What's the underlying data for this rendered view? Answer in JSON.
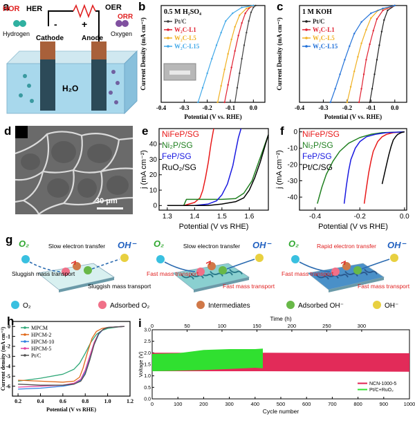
{
  "figure": {
    "panel_letters": [
      "a",
      "b",
      "c",
      "d",
      "e",
      "f",
      "g",
      "h",
      "i"
    ]
  },
  "panel_a": {
    "hor": "HOR",
    "her": "HER",
    "oer": "OER",
    "orr": "ORR",
    "hydrogen": "Hydrogen",
    "oxygen": "Oxygen",
    "cathode": "Cathode",
    "anode": "Anode",
    "minus": "-",
    "plus": "+",
    "electrolyte": "H₂O"
  },
  "panel_d": {
    "scale_bar": "30 μm"
  },
  "panel_g": {
    "o2": "O₂",
    "oh": "OH⁻",
    "col1": {
      "top": "Slow electron transfer",
      "left": "Sluggish mass transport",
      "right": "Sluggish mass transport"
    },
    "col2": {
      "top": "Slow electron transfer",
      "left": "Fast mass transport",
      "right": "Fast mass transport"
    },
    "col3": {
      "top": "Rapid electron transfer",
      "left": "Fast mass transport",
      "right": "Fast mass transport"
    },
    "legend": [
      "O₂",
      "Adsorbed O₂",
      "Intermediates",
      "Adsorbed OH⁻",
      "OH⁻"
    ],
    "colors": {
      "o2": "#39c0e0",
      "adsO2": "#f07088",
      "inter": "#d07848",
      "adsOH": "#68b848",
      "oh": "#e8d040"
    }
  },
  "chart_data": [
    {
      "id": "b",
      "type": "line",
      "annotation": "0.5 M H₂SO₄",
      "xlabel": "Potential (V vs. RHE)",
      "ylabel": "Current Density (mA cm⁻²)",
      "xlim": [
        -0.4,
        0.05
      ],
      "ylim": [
        -100,
        0
      ],
      "xticks": [
        "-0.4",
        "-0.3",
        "-0.2",
        "-0.1",
        "0.0"
      ],
      "series": [
        {
          "name": "Pt/C",
          "color": "#404040",
          "x": [
            -0.08,
            -0.07,
            -0.06,
            -0.05,
            -0.04,
            -0.03,
            -0.02,
            -0.01,
            0.0,
            0.01
          ],
          "y": [
            -100,
            -85,
            -70,
            -55,
            -41,
            -28,
            -16,
            -7,
            -2,
            0
          ]
        },
        {
          "name": "W₂C-L1",
          "color": "#e02030",
          "x": [
            -0.125,
            -0.11,
            -0.095,
            -0.08,
            -0.065,
            -0.05,
            -0.035,
            -0.02,
            0.0
          ],
          "y": [
            -100,
            -82,
            -64,
            -47,
            -31,
            -18,
            -8,
            -3,
            0
          ]
        },
        {
          "name": "W₂C-L5",
          "color": "#f0b020",
          "x": [
            -0.155,
            -0.14,
            -0.125,
            -0.11,
            -0.095,
            -0.08,
            -0.06,
            -0.03,
            0.0
          ],
          "y": [
            -100,
            -83,
            -66,
            -50,
            -35,
            -22,
            -10,
            -3,
            0
          ]
        },
        {
          "name": "W₂C-L15",
          "color": "#40a8e8",
          "x": [
            -0.24,
            -0.22,
            -0.2,
            -0.18,
            -0.16,
            -0.14,
            -0.12,
            -0.09,
            -0.05,
            0.0
          ],
          "y": [
            -100,
            -85,
            -70,
            -55,
            -41,
            -28,
            -16,
            -8,
            -2,
            0
          ]
        }
      ]
    },
    {
      "id": "c",
      "type": "line",
      "annotation": "1 M KOH",
      "xlabel": "Potential (V vs. RHE)",
      "ylabel": "Current Density (mA cm⁻²)",
      "xlim": [
        -0.4,
        0.05
      ],
      "ylim": [
        -100,
        0
      ],
      "xticks": [
        "-0.4",
        "-0.3",
        "-0.2",
        "-0.1",
        "0.0"
      ],
      "series": [
        {
          "name": "Pt/C",
          "color": "#202020",
          "x": [
            -0.105,
            -0.095,
            -0.085,
            -0.075,
            -0.065,
            -0.055,
            -0.045,
            -0.03,
            0.0
          ],
          "y": [
            -100,
            -86,
            -71,
            -56,
            -41,
            -27,
            -15,
            -5,
            0
          ]
        },
        {
          "name": "W₂C-L1",
          "color": "#e02030",
          "x": [
            -0.15,
            -0.14,
            -0.13,
            -0.12,
            -0.105,
            -0.09,
            -0.075,
            -0.05,
            0.0
          ],
          "y": [
            -100,
            -86,
            -71,
            -56,
            -40,
            -26,
            -14,
            -5,
            0
          ]
        },
        {
          "name": "W₂C-L5",
          "color": "#f0b020",
          "x": [
            -0.2,
            -0.185,
            -0.17,
            -0.155,
            -0.14,
            -0.12,
            -0.1,
            -0.07,
            0.0
          ],
          "y": [
            -100,
            -84,
            -68,
            -53,
            -39,
            -25,
            -13,
            -5,
            0
          ]
        },
        {
          "name": "W₂C-L15",
          "color": "#2070d8",
          "x": [
            -0.27,
            -0.25,
            -0.23,
            -0.21,
            -0.19,
            -0.17,
            -0.14,
            -0.1,
            -0.05,
            0.0
          ],
          "y": [
            -100,
            -86,
            -71,
            -56,
            -42,
            -29,
            -17,
            -8,
            -3,
            0
          ]
        }
      ]
    },
    {
      "id": "e",
      "type": "line",
      "xlabel": "Potential (V vs RHE)",
      "ylabel": "j (mA cm⁻²)",
      "xlim": [
        1.27,
        1.67
      ],
      "ylim": [
        -3,
        50
      ],
      "xticks": [
        "1.3",
        "1.4",
        "1.5",
        "1.6"
      ],
      "yticks": [
        "0",
        "10",
        "20",
        "30",
        "40"
      ],
      "series": [
        {
          "name": "NiFeP/SG",
          "color": "#e81818",
          "x": [
            1.3,
            1.36,
            1.38,
            1.4,
            1.42,
            1.43,
            1.44,
            1.45,
            1.46,
            1.47
          ],
          "y": [
            0,
            0,
            1,
            2,
            5,
            10,
            18,
            28,
            40,
            50
          ]
        },
        {
          "name": "Ni₂P/SG",
          "color": "#208020",
          "x": [
            1.3,
            1.36,
            1.37,
            1.4,
            1.5,
            1.55,
            1.58,
            1.61,
            1.63,
            1.65,
            1.67
          ],
          "y": [
            0,
            0,
            4,
            4,
            4,
            4.5,
            8,
            16,
            26,
            36,
            46
          ]
        },
        {
          "name": "FeP/SG",
          "color": "#1818e0",
          "x": [
            1.3,
            1.4,
            1.45,
            1.48,
            1.5,
            1.52,
            1.54,
            1.55,
            1.56,
            1.57
          ],
          "y": [
            0,
            0,
            1,
            3,
            7,
            14,
            26,
            35,
            44,
            50
          ]
        },
        {
          "name": "RuO₂/SG",
          "color": "#000000",
          "x": [
            1.3,
            1.45,
            1.5,
            1.55,
            1.58,
            1.6,
            1.62,
            1.64,
            1.66,
            1.67
          ],
          "y": [
            0,
            0,
            1,
            2.5,
            5,
            10,
            18,
            28,
            40,
            46
          ]
        }
      ]
    },
    {
      "id": "f",
      "type": "line",
      "xlabel": "Potential (V vs RHE)",
      "ylabel": "j (mA cm⁻²)",
      "xlim": [
        -0.47,
        0.01
      ],
      "ylim": [
        -48,
        2
      ],
      "xticks": [
        "-0.4",
        "-0.2",
        "0.0"
      ],
      "yticks": [
        "0",
        "-10",
        "-20",
        "-30",
        "-40"
      ],
      "series": [
        {
          "name": "NiFeP/SG",
          "color": "#e81818",
          "x": [
            -0.18,
            -0.17,
            -0.16,
            -0.15,
            -0.14,
            -0.12,
            -0.1,
            -0.08,
            -0.05,
            0.0
          ],
          "y": [
            -44,
            -34,
            -25,
            -18,
            -12,
            -6,
            -3,
            -1.5,
            -0.5,
            0
          ]
        },
        {
          "name": "Ni₂P/SG",
          "color": "#208020",
          "x": [
            -0.39,
            -0.37,
            -0.35,
            -0.32,
            -0.29,
            -0.25,
            -0.2,
            -0.15,
            -0.1,
            0.0
          ],
          "y": [
            -44,
            -34,
            -26,
            -18,
            -12,
            -7,
            -3.5,
            -1.5,
            -0.5,
            0
          ]
        },
        {
          "name": "FeP/SG",
          "color": "#1818e0",
          "x": [
            -0.27,
            -0.26,
            -0.25,
            -0.24,
            -0.22,
            -0.2,
            -0.17,
            -0.13,
            -0.08,
            0.0
          ],
          "y": [
            -44,
            -33,
            -24,
            -17,
            -10,
            -6,
            -3,
            -1.5,
            -0.5,
            0
          ]
        },
        {
          "name": "Pt/C/SG",
          "color": "#000000",
          "x": [
            -0.1,
            -0.09,
            -0.08,
            -0.07,
            -0.06,
            -0.05,
            -0.04,
            -0.03,
            -0.015,
            0.0
          ],
          "y": [
            -32,
            -26,
            -20,
            -14,
            -9,
            -5,
            -3,
            -1.5,
            -0.5,
            0
          ]
        }
      ]
    },
    {
      "id": "h",
      "type": "line",
      "xlabel": "Potential (V vs RHE)",
      "ylabel": "Current density (mA cm⁻²)",
      "xlim": [
        0.15,
        1.2
      ],
      "ylim": [
        -7,
        0.5
      ],
      "xticks": [
        "0.2",
        "0.4",
        "0.6",
        "0.8",
        "1.0",
        "1.2"
      ],
      "yticks": [
        "0",
        "-1",
        "-2",
        "-3",
        "-4",
        "-5",
        "-6"
      ],
      "series": [
        {
          "name": "MPCM",
          "color": "#30a878",
          "x": [
            0.2,
            0.4,
            0.6,
            0.7,
            0.75,
            0.8,
            0.85,
            0.9,
            0.95,
            1.0,
            1.1,
            1.15
          ],
          "y": [
            -5.5,
            -5.2,
            -4.8,
            -4.3,
            -3.7,
            -2.7,
            -1.6,
            -0.8,
            -0.4,
            -0.2,
            -0.05,
            0
          ]
        },
        {
          "name": "HPCM-2",
          "color": "#e06818",
          "x": [
            0.2,
            0.4,
            0.6,
            0.7,
            0.75,
            0.78,
            0.82,
            0.86,
            0.9,
            0.95,
            1.0,
            1.15
          ],
          "y": [
            -5.4,
            -5.5,
            -5.6,
            -5.5,
            -5.1,
            -4.2,
            -2.6,
            -1.2,
            -0.5,
            -0.2,
            -0.1,
            0
          ]
        },
        {
          "name": "HPCM-10",
          "color": "#3080e0",
          "x": [
            0.2,
            0.4,
            0.6,
            0.7,
            0.76,
            0.8,
            0.84,
            0.88,
            0.92,
            0.96,
            1.0,
            1.15
          ],
          "y": [
            -6.3,
            -6.2,
            -6.0,
            -5.8,
            -5.4,
            -4.6,
            -3.2,
            -1.8,
            -0.8,
            -0.3,
            -0.1,
            0
          ]
        },
        {
          "name": "HPCM-5",
          "color": "#e040a0",
          "x": [
            0.2,
            0.4,
            0.6,
            0.7,
            0.76,
            0.8,
            0.84,
            0.88,
            0.92,
            0.96,
            1.0,
            1.15
          ],
          "y": [
            -6.1,
            -6.0,
            -5.9,
            -5.7,
            -5.3,
            -4.4,
            -3.0,
            -1.6,
            -0.7,
            -0.3,
            -0.1,
            0
          ]
        },
        {
          "name": "Pt/C",
          "color": "#505050",
          "x": [
            0.2,
            0.4,
            0.6,
            0.7,
            0.76,
            0.8,
            0.84,
            0.88,
            0.92,
            0.96,
            1.0,
            1.15
          ],
          "y": [
            -5.8,
            -5.9,
            -5.9,
            -5.8,
            -5.5,
            -4.8,
            -3.4,
            -1.8,
            -0.7,
            -0.3,
            -0.1,
            0
          ]
        }
      ]
    },
    {
      "id": "i",
      "type": "area",
      "xlabel": "Cycle number",
      "x2label": "Time (h)",
      "ylabel": "Voltage (V)",
      "xlim": [
        0,
        1000
      ],
      "ylim": [
        0.0,
        3.0
      ],
      "xticks": [
        "0",
        "100",
        "200",
        "300",
        "400",
        "500",
        "600",
        "700",
        "800",
        "900",
        "1000"
      ],
      "x2ticks": [
        "0",
        "50",
        "100",
        "150",
        "200",
        "250",
        "300"
      ],
      "yticks": [
        "0.0",
        "0.5",
        "1.0",
        "1.5",
        "2.0",
        "2.5",
        "3.0"
      ],
      "series": [
        {
          "name": "NCN-1000-5",
          "color": "#e02050",
          "x": [
            0,
            430,
            1000
          ],
          "upper": [
            2.0,
            2.0,
            1.98
          ],
          "lower": [
            1.2,
            1.2,
            1.18
          ]
        },
        {
          "name": "Pt/C+RuO₂",
          "color": "#30e030",
          "x": [
            0,
            100,
            200,
            300,
            400,
            430
          ],
          "upper": [
            1.95,
            1.98,
            2.12,
            2.16,
            2.16,
            2.18
          ],
          "lower": [
            1.2,
            1.22,
            1.25,
            1.3,
            1.35,
            1.33
          ]
        }
      ]
    }
  ]
}
